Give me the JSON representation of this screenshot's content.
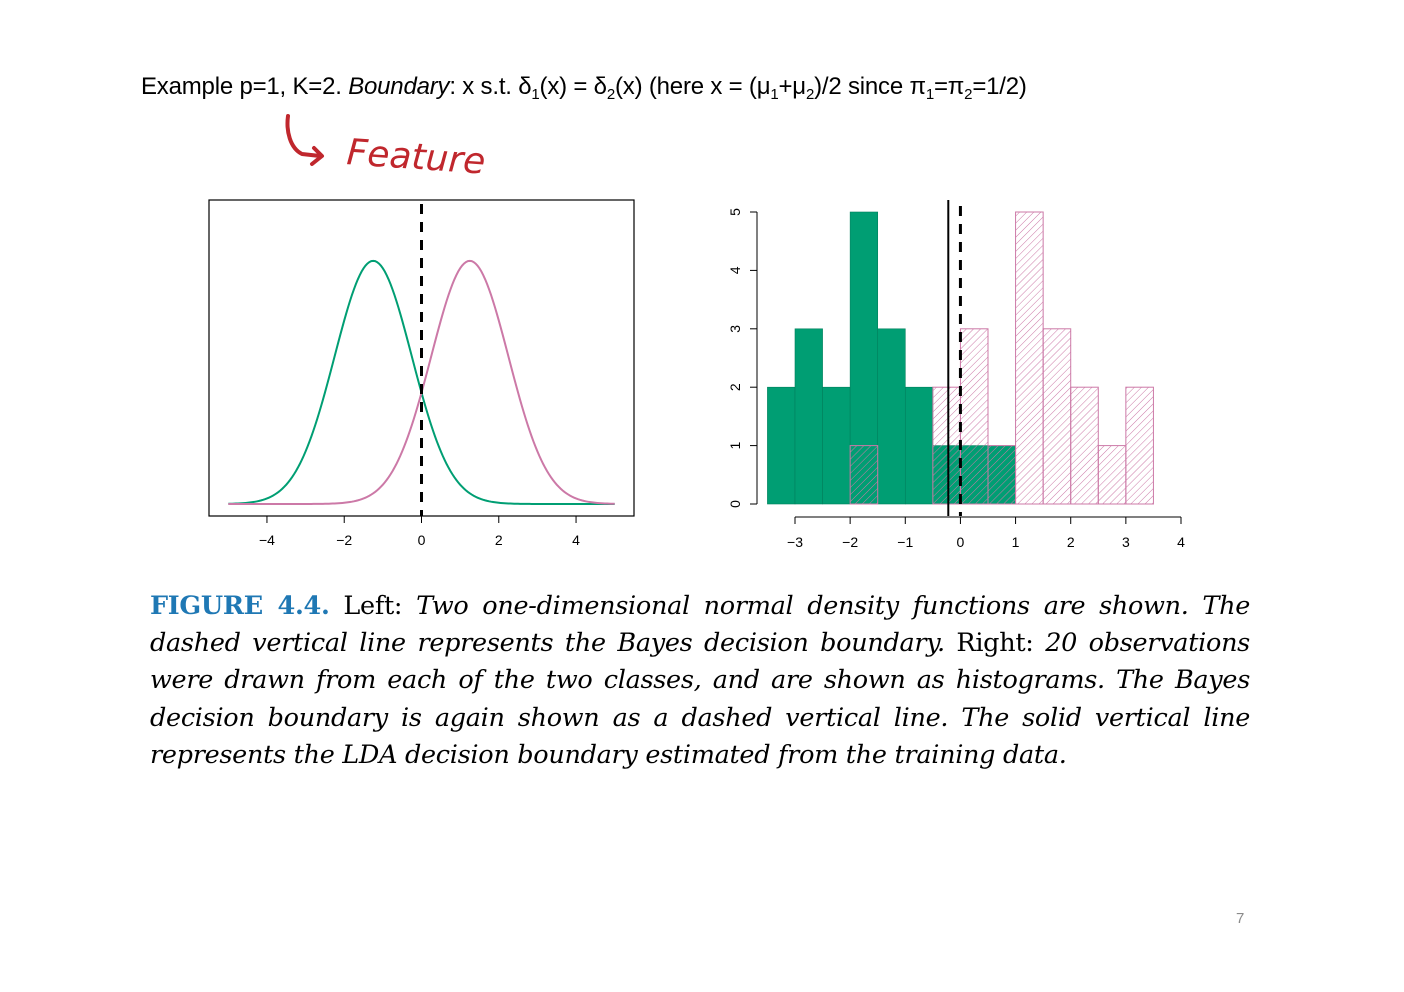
{
  "headline": {
    "prefix": "Example p=1, K=2. ",
    "boundary_word": "Boundary",
    "mid": ": x s.t. δ",
    "sub1": "1",
    "mid2": "(x) = δ",
    "sub2": "2",
    "mid3": "(x) (here x = (μ",
    "sub3": "1",
    "mid4": "+μ",
    "sub4": "2",
    "mid5": ")/2 since π",
    "sub5": "1",
    "mid6": "=π",
    "sub6": "2",
    "suffix": "=1/2)"
  },
  "annotation": {
    "text": "Feature",
    "color": "#c0272d"
  },
  "chart_data": [
    {
      "type": "line",
      "description_id": "left-density",
      "x_ticks": [
        -4,
        -2,
        0,
        2,
        4
      ],
      "xlim": [
        -5.5,
        5.5
      ],
      "ylim": [
        0,
        0.42
      ],
      "series": [
        {
          "mean": -1.25,
          "sd": 1.0,
          "color": "#009e73"
        },
        {
          "mean": 1.25,
          "sd": 1.0,
          "color": "#cc79a7"
        }
      ],
      "x_range": [
        -5,
        5
      ],
      "bayes_boundary": 0,
      "boundary_style": "dashed",
      "box": true
    },
    {
      "type": "bar",
      "description_id": "right-histogram",
      "x_ticks": [
        -3,
        -2,
        -1,
        0,
        1,
        2,
        3,
        4
      ],
      "y_ticks": [
        0,
        1,
        2,
        3,
        4,
        5
      ],
      "xlim": [
        -3.5,
        4
      ],
      "ylim": [
        0,
        5
      ],
      "bin_edges": [
        -3.5,
        -3,
        -2.5,
        -2,
        -1.5,
        -1,
        -0.5,
        0,
        0.5,
        1,
        1.5,
        2,
        2.5,
        3,
        3.5
      ],
      "green_counts": [
        2,
        3,
        2,
        5,
        3,
        2,
        1,
        1,
        1,
        0,
        0,
        0,
        0,
        0
      ],
      "pink_counts": [
        0,
        0,
        0,
        1,
        0,
        0,
        2,
        3,
        1,
        5,
        3,
        2,
        1,
        2
      ],
      "green_color": "#009e73",
      "pink_color": "#cc79a7",
      "lda_boundary": -0.22,
      "bayes_boundary": 0
    }
  ],
  "caption": {
    "figure_label": "FIGURE 4.4.",
    "left_word": "Left:",
    "left_text": "Two one-dimensional normal density functions are shown. The dashed vertical line represents the Bayes decision boundary.",
    "right_word": "Right:",
    "right_text": "20 observations were drawn from each of the two classes, and are shown as histograms. The Bayes decision boundary is again shown as a dashed vertical line. The solid vertical line represents the LDA decision boundary estimated from the training data."
  },
  "page_number": "7"
}
